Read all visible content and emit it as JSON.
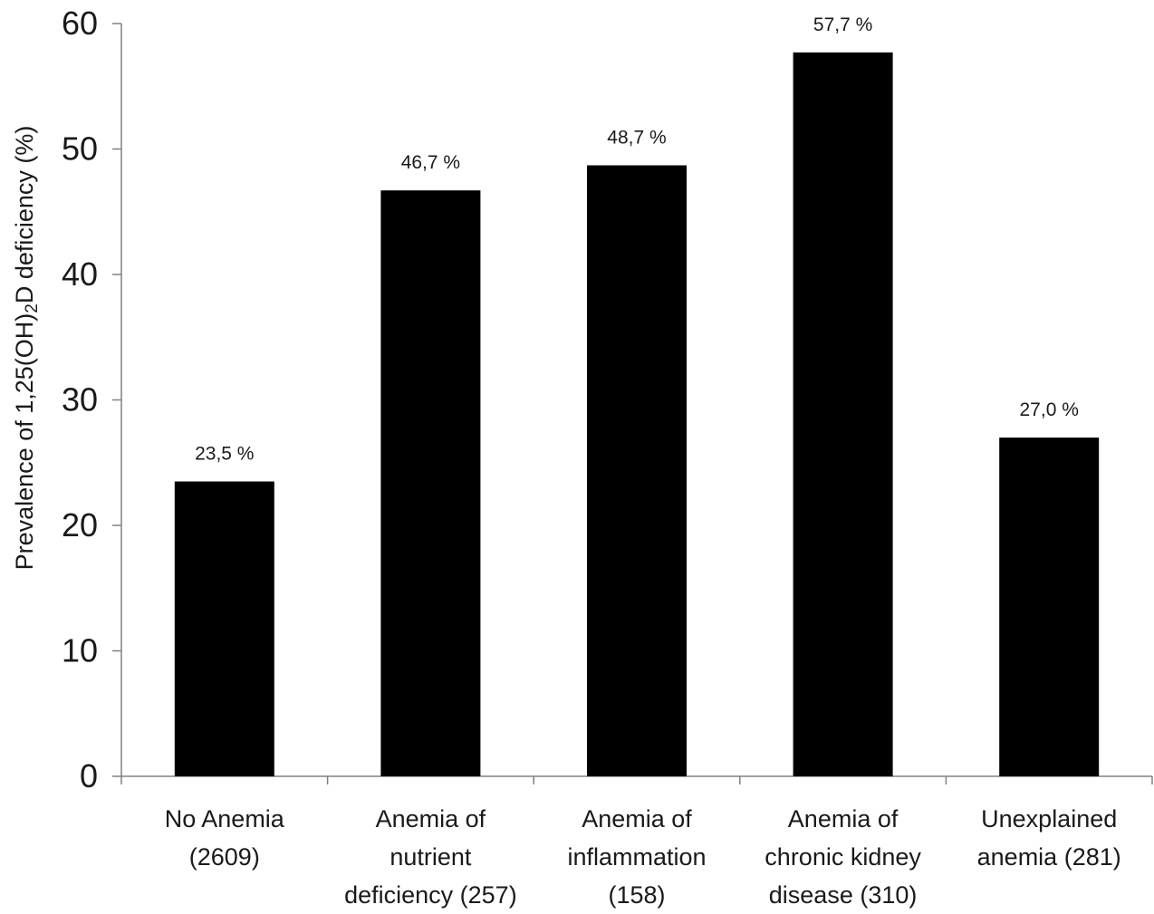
{
  "chart_data": {
    "type": "bar",
    "title": "",
    "xlabel": "",
    "ylabel": {
      "before": "Prevalence of 1,25(OH)",
      "subscript": "2",
      "after": "D deficiency (%)"
    },
    "ylim": [
      0,
      60
    ],
    "yticks": [
      0,
      10,
      20,
      30,
      40,
      50,
      60
    ],
    "grid": false,
    "legend": "none",
    "categories": [
      [
        "No Anemia",
        "(2609)"
      ],
      [
        "Anemia of",
        "nutrient",
        "deficiency (257)"
      ],
      [
        "Anemia of",
        "inflammation",
        "(158)"
      ],
      [
        "Anemia of",
        "chronic kidney",
        "disease (310)"
      ],
      [
        "Unexplained",
        "anemia (281)"
      ]
    ],
    "values": [
      23.5,
      46.7,
      48.7,
      57.7,
      27.0
    ],
    "data_labels": [
      "23,5 %",
      "46,7 %",
      "48,7 %",
      "57,7 %",
      "27,0 %"
    ],
    "colors": {
      "bar": "#000000",
      "axis": "#808080",
      "text": "#1a1a1a"
    }
  }
}
